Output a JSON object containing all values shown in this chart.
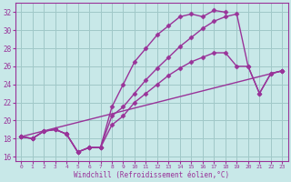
{
  "background_color": "#c8e8e8",
  "grid_color": "#a0c8c8",
  "line_color": "#993399",
  "marker": "D",
  "marker_size": 2.5,
  "line_width": 1.0,
  "xlim": [
    -0.5,
    23.5
  ],
  "ylim": [
    15.5,
    33.0
  ],
  "xticks": [
    0,
    1,
    2,
    3,
    4,
    5,
    6,
    7,
    8,
    9,
    10,
    11,
    12,
    13,
    14,
    15,
    16,
    17,
    18,
    19,
    20,
    21,
    22,
    23
  ],
  "yticks": [
    16,
    18,
    20,
    22,
    24,
    26,
    28,
    30,
    32
  ],
  "xlabel": "Windchill (Refroidissement éolien,°C)",
  "line1_x": [
    0,
    1,
    2,
    3,
    4,
    5,
    6,
    7,
    8,
    9,
    10,
    11,
    12,
    13,
    14,
    15,
    16,
    17,
    18
  ],
  "line1_y": [
    18.2,
    18.0,
    18.8,
    19.0,
    18.5,
    16.5,
    17.0,
    17.0,
    21.5,
    24.0,
    26.5,
    28.0,
    29.5,
    30.5,
    31.5,
    31.8,
    31.5,
    32.2,
    32.0
  ],
  "line2_x": [
    0,
    1,
    2,
    3,
    4,
    5,
    6,
    7,
    8,
    9,
    10,
    11,
    12,
    13,
    14,
    15,
    16,
    17,
    18,
    19,
    20,
    21,
    22,
    23
  ],
  "line2_y": [
    18.2,
    18.0,
    18.8,
    19.0,
    18.5,
    16.5,
    17.0,
    17.0,
    19.5,
    20.5,
    22.0,
    23.0,
    24.0,
    25.0,
    25.8,
    26.5,
    27.0,
    27.5,
    27.5,
    26.0,
    26.0,
    23.0,
    25.2,
    25.5
  ],
  "line3_x": [
    0,
    23
  ],
  "line3_y": [
    18.2,
    25.5
  ],
  "line4_x": [
    0,
    1,
    2,
    3,
    4,
    5,
    6,
    7,
    8,
    9,
    10,
    11,
    12,
    13,
    14,
    15,
    16,
    17,
    18,
    19,
    20,
    21,
    22,
    23
  ],
  "line4_y": [
    18.2,
    18.0,
    18.8,
    19.0,
    18.5,
    16.5,
    17.0,
    17.0,
    20.5,
    21.5,
    23.0,
    24.5,
    25.8,
    27.0,
    28.2,
    29.2,
    30.2,
    31.0,
    31.5,
    31.8,
    26.0,
    23.0,
    25.2,
    25.5
  ]
}
